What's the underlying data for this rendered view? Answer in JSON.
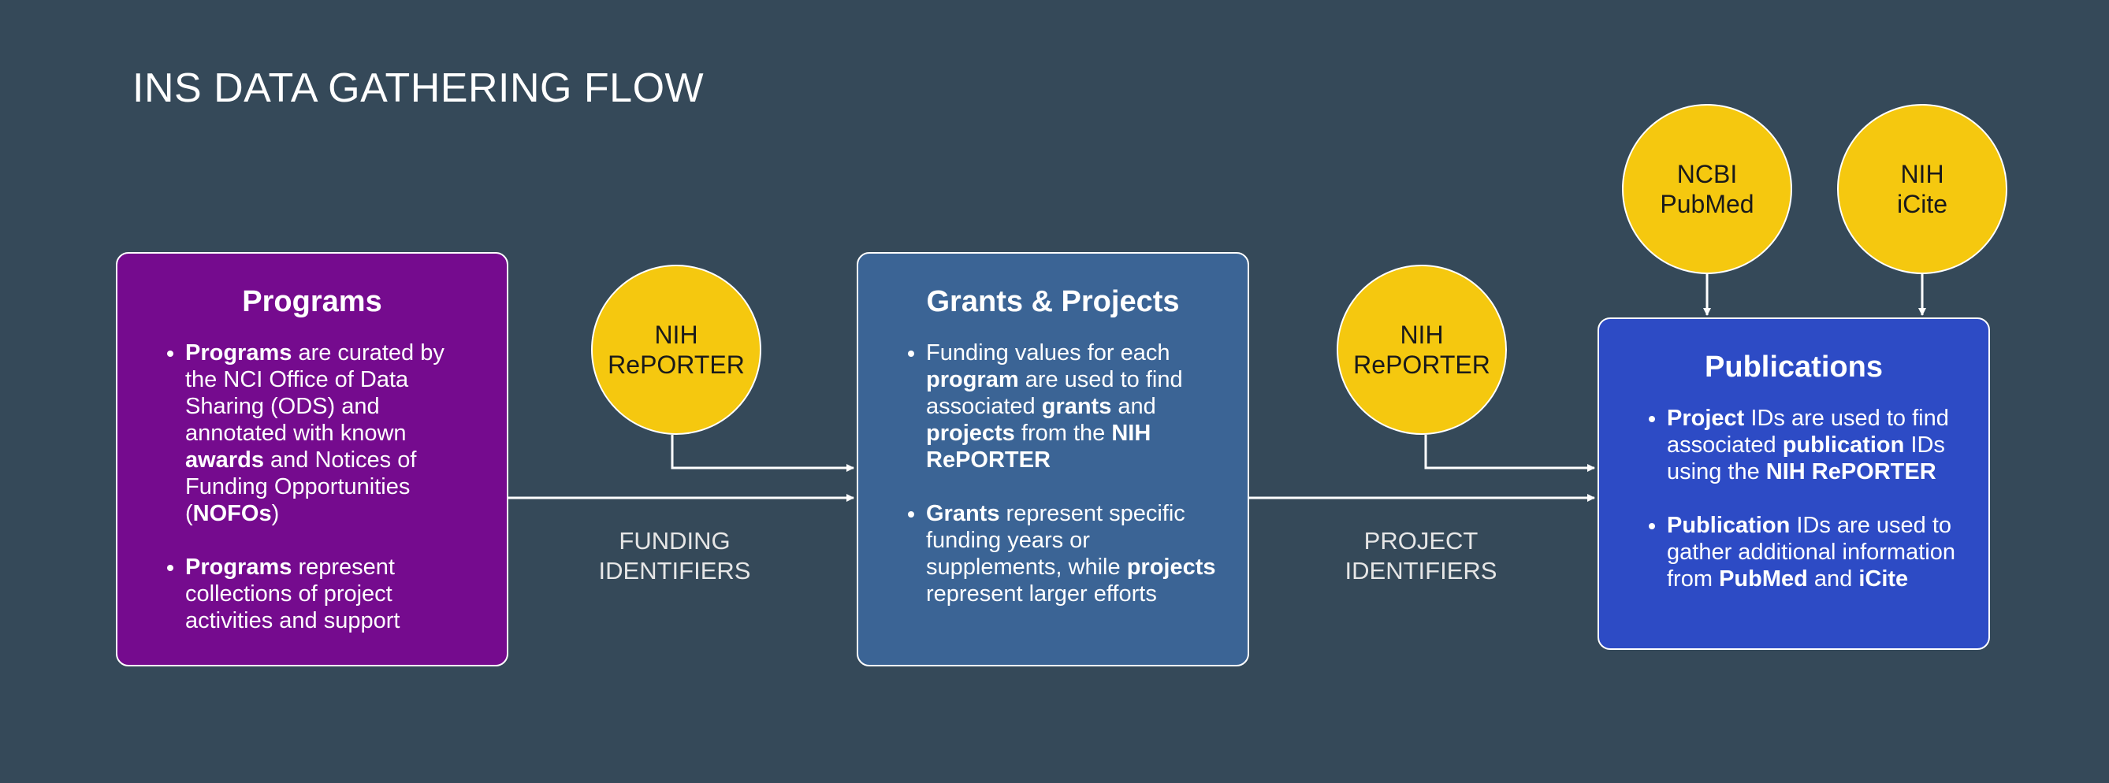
{
  "title": "INS DATA GATHERING FLOW",
  "programs": {
    "heading": "Programs",
    "bullets": [
      [
        {
          "t": "Programs",
          "b": true
        },
        {
          "t": " are curated by the NCI Office of Data Sharing (ODS) and annotated with known ",
          "b": false
        },
        {
          "t": "awards",
          "b": true
        },
        {
          "t": " and Notices of Funding Opportunities (",
          "b": false
        },
        {
          "t": "NOFOs",
          "b": true
        },
        {
          "t": ")",
          "b": false
        }
      ],
      [
        {
          "t": "Programs",
          "b": true
        },
        {
          "t": " represent collections of project activities and support",
          "b": false
        }
      ]
    ]
  },
  "grants": {
    "heading": "Grants & Projects",
    "bullets": [
      [
        {
          "t": "Funding values for each ",
          "b": false
        },
        {
          "t": "program",
          "b": true
        },
        {
          "t": " are used to find associated ",
          "b": false
        },
        {
          "t": "grants",
          "b": true
        },
        {
          "t": " and ",
          "b": false
        },
        {
          "t": "projects",
          "b": true
        },
        {
          "t": " from the ",
          "b": false
        },
        {
          "t": "NIH RePORTER",
          "b": true
        }
      ],
      [
        {
          "t": "Grants",
          "b": true
        },
        {
          "t": " represent specific funding years or supplements, while ",
          "b": false
        },
        {
          "t": "projects",
          "b": true
        },
        {
          "t": " represent larger efforts",
          "b": false
        }
      ]
    ]
  },
  "publications": {
    "heading": "Publications",
    "bullets": [
      [
        {
          "t": "Project",
          "b": true
        },
        {
          "t": " IDs are used to find associated ",
          "b": false
        },
        {
          "t": "publication",
          "b": true
        },
        {
          "t": " IDs using the ",
          "b": false
        },
        {
          "t": "NIH RePORTER",
          "b": true
        }
      ],
      [
        {
          "t": "Publication",
          "b": true
        },
        {
          "t": " IDs are used to gather additional information from ",
          "b": false
        },
        {
          "t": "PubMed",
          "b": true
        },
        {
          "t": " and ",
          "b": false
        },
        {
          "t": "iCite",
          "b": true
        }
      ]
    ]
  },
  "sources": {
    "reporter_1": "NIH\nRePORTER",
    "reporter_2": "NIH\nRePORTER",
    "pubmed": "NCBI\nPubMed",
    "icite": "NIH\niCite"
  },
  "edges": {
    "funding": "FUNDING\nIDENTIFIERS",
    "project": "PROJECT\nIDENTIFIERS"
  },
  "colors": {
    "background": "#354959",
    "programs": "#750b8e",
    "grants": "#3b6495",
    "publications": "#2d4bc5",
    "source_circle": "#f5c80f",
    "arrow": "#ffffff"
  }
}
